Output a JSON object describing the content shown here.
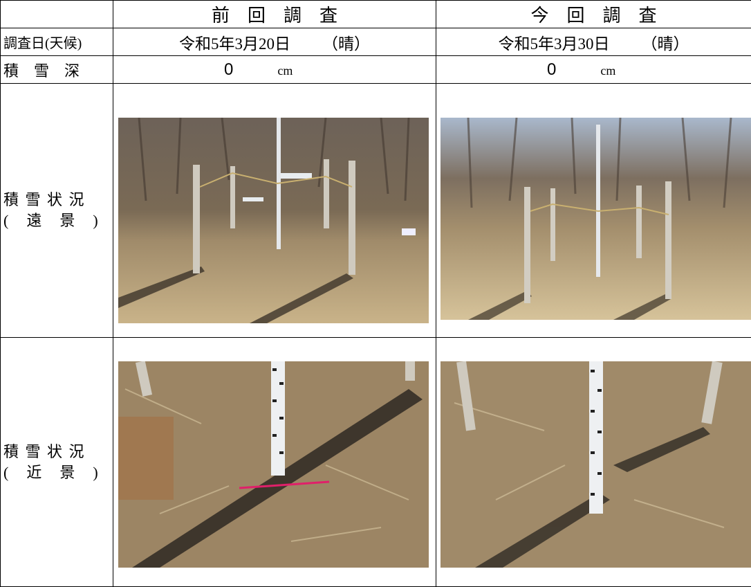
{
  "table": {
    "header": {
      "previous": "前　回　調　査",
      "current": "今　回　調　査"
    },
    "survey_date": {
      "label": "調査日(天候)",
      "previous": {
        "date": "令和5年3月20日",
        "weather": "（晴）"
      },
      "current": {
        "date": "令和5年3月30日",
        "weather": "（晴）"
      }
    },
    "snow_depth": {
      "label": "積　雪　深",
      "previous": {
        "value": 0,
        "unit": "cm"
      },
      "current": {
        "value": 0,
        "unit": "cm"
      }
    },
    "distant_view": {
      "label": [
        "積 雪 状 況",
        "(　遠　景　)"
      ]
    },
    "close_view": {
      "label": [
        "積 雪 状 況",
        "(　近　景　)"
      ]
    }
  }
}
